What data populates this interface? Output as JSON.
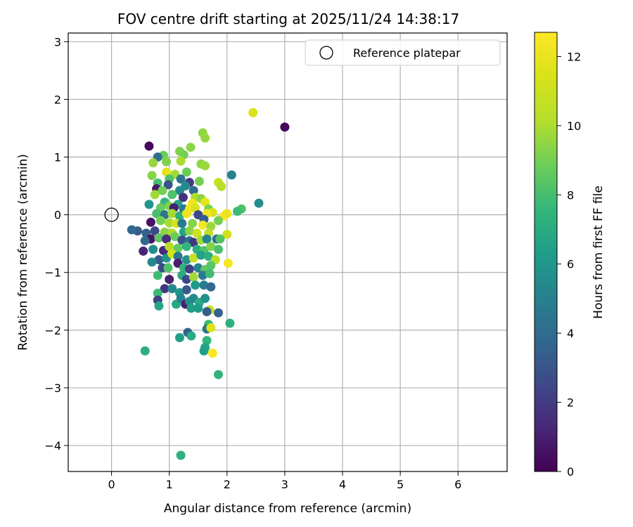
{
  "chart_data": {
    "type": "scatter",
    "title": "FOV centre drift starting at 2025/11/24 14:38:17",
    "xlabel": "Angular distance from reference (arcmin)",
    "ylabel": "Rotation from reference (arcmin)",
    "xlim": [
      -0.75,
      6.85
    ],
    "ylim": [
      -4.45,
      3.15
    ],
    "xticks": [
      0,
      1,
      2,
      3,
      4,
      5,
      6
    ],
    "yticks": [
      -4,
      -3,
      -2,
      -1,
      0,
      1,
      2,
      3
    ],
    "grid": true,
    "legend": {
      "position": "top-right",
      "label": "Reference platepar"
    },
    "reference_point": {
      "x": 0,
      "y": 0
    },
    "colorbar": {
      "label": "Hours from first FF file",
      "min": 0,
      "max": 12.7,
      "ticks": [
        0,
        2,
        4,
        6,
        8,
        10,
        12
      ],
      "colormap": "viridis"
    },
    "points": [
      {
        "x": 3.0,
        "y": 1.52,
        "c": 0.2
      },
      {
        "x": 2.45,
        "y": 1.77,
        "c": 11.5
      },
      {
        "x": 0.65,
        "y": 1.19,
        "c": 0.3
      },
      {
        "x": 1.58,
        "y": 1.42,
        "c": 9.5
      },
      {
        "x": 1.62,
        "y": 1.33,
        "c": 9.6
      },
      {
        "x": 1.37,
        "y": 1.17,
        "c": 9.4
      },
      {
        "x": 1.18,
        "y": 1.1,
        "c": 9.2
      },
      {
        "x": 1.25,
        "y": 1.04,
        "c": 9.0
      },
      {
        "x": 0.9,
        "y": 1.03,
        "c": 8.8
      },
      {
        "x": 0.8,
        "y": 1.0,
        "c": 4.2
      },
      {
        "x": 0.72,
        "y": 0.9,
        "c": 9.6
      },
      {
        "x": 0.95,
        "y": 0.92,
        "c": 9.2
      },
      {
        "x": 1.2,
        "y": 0.93,
        "c": 10.0
      },
      {
        "x": 1.55,
        "y": 0.88,
        "c": 9.5
      },
      {
        "x": 1.62,
        "y": 0.85,
        "c": 9.7
      },
      {
        "x": 2.08,
        "y": 0.69,
        "c": 5.0
      },
      {
        "x": 0.7,
        "y": 0.68,
        "c": 9.3
      },
      {
        "x": 1.3,
        "y": 0.74,
        "c": 8.8
      },
      {
        "x": 0.95,
        "y": 0.74,
        "c": 11.8
      },
      {
        "x": 1.1,
        "y": 0.7,
        "c": 9.8
      },
      {
        "x": 1.2,
        "y": 0.62,
        "c": 4.5
      },
      {
        "x": 1.0,
        "y": 0.62,
        "c": 8.2
      },
      {
        "x": 1.85,
        "y": 0.56,
        "c": 10.8
      },
      {
        "x": 1.9,
        "y": 0.49,
        "c": 10.2
      },
      {
        "x": 1.52,
        "y": 0.58,
        "c": 9.0
      },
      {
        "x": 1.35,
        "y": 0.56,
        "c": 2.0
      },
      {
        "x": 1.28,
        "y": 0.5,
        "c": 5.5
      },
      {
        "x": 0.98,
        "y": 0.52,
        "c": 3.0
      },
      {
        "x": 0.8,
        "y": 0.55,
        "c": 8.0
      },
      {
        "x": 0.78,
        "y": 0.45,
        "c": 0.8
      },
      {
        "x": 0.88,
        "y": 0.42,
        "c": 9.0
      },
      {
        "x": 1.18,
        "y": 0.42,
        "c": 5.4
      },
      {
        "x": 1.42,
        "y": 0.42,
        "c": 4.0
      },
      {
        "x": 0.75,
        "y": 0.35,
        "c": 9.8
      },
      {
        "x": 1.05,
        "y": 0.35,
        "c": 8.2
      },
      {
        "x": 1.24,
        "y": 0.3,
        "c": 1.6
      },
      {
        "x": 1.45,
        "y": 0.3,
        "c": 10.1
      },
      {
        "x": 1.55,
        "y": 0.28,
        "c": 9.4
      },
      {
        "x": 1.62,
        "y": 0.22,
        "c": 11.9
      },
      {
        "x": 1.4,
        "y": 0.2,
        "c": 12.2
      },
      {
        "x": 1.15,
        "y": 0.18,
        "c": 6.5
      },
      {
        "x": 0.92,
        "y": 0.22,
        "c": 7.5
      },
      {
        "x": 0.65,
        "y": 0.18,
        "c": 6.0
      },
      {
        "x": 0.85,
        "y": 0.12,
        "c": 8.7
      },
      {
        "x": 1.0,
        "y": 0.15,
        "c": 9.2
      },
      {
        "x": 1.08,
        "y": 0.12,
        "c": 1.0
      },
      {
        "x": 1.25,
        "y": 0.1,
        "c": 4.5
      },
      {
        "x": 1.35,
        "y": 0.1,
        "c": 12.3
      },
      {
        "x": 1.45,
        "y": 0.12,
        "c": 11.5
      },
      {
        "x": 1.68,
        "y": 0.1,
        "c": 9.1
      },
      {
        "x": 2.55,
        "y": 0.2,
        "c": 5.6
      },
      {
        "x": 2.25,
        "y": 0.1,
        "c": 8.2
      },
      {
        "x": 2.18,
        "y": 0.06,
        "c": 7.8
      },
      {
        "x": 1.75,
        "y": 0.04,
        "c": 11.4
      },
      {
        "x": 1.65,
        "y": 0.02,
        "c": 12.3
      },
      {
        "x": 1.95,
        "y": -0.02,
        "c": 12.6
      },
      {
        "x": 2.0,
        "y": 0.02,
        "c": 12.0
      },
      {
        "x": 0.78,
        "y": 0.02,
        "c": 8.0
      },
      {
        "x": 0.92,
        "y": 0.0,
        "c": 4.5
      },
      {
        "x": 1.05,
        "y": 0.02,
        "c": 9.9
      },
      {
        "x": 1.18,
        "y": -0.02,
        "c": 7.2
      },
      {
        "x": 1.3,
        "y": 0.02,
        "c": 12.1
      },
      {
        "x": 1.5,
        "y": 0.0,
        "c": 2.6
      },
      {
        "x": 1.6,
        "y": -0.08,
        "c": 3.4
      },
      {
        "x": 1.85,
        "y": -0.1,
        "c": 9.0
      },
      {
        "x": 0.68,
        "y": -0.13,
        "c": 0.6
      },
      {
        "x": 0.85,
        "y": -0.1,
        "c": 9.0
      },
      {
        "x": 1.0,
        "y": -0.14,
        "c": 9.9
      },
      {
        "x": 1.12,
        "y": -0.15,
        "c": 11.4
      },
      {
        "x": 1.22,
        "y": -0.15,
        "c": 4.7
      },
      {
        "x": 1.4,
        "y": -0.15,
        "c": 9.3
      },
      {
        "x": 1.58,
        "y": -0.18,
        "c": 12.4
      },
      {
        "x": 1.72,
        "y": -0.2,
        "c": 9.7
      },
      {
        "x": 0.45,
        "y": -0.28,
        "c": 3.3
      },
      {
        "x": 0.35,
        "y": -0.26,
        "c": 3.8
      },
      {
        "x": 0.6,
        "y": -0.32,
        "c": 3.6
      },
      {
        "x": 0.75,
        "y": -0.28,
        "c": 2.5
      },
      {
        "x": 0.92,
        "y": -0.3,
        "c": 9.4
      },
      {
        "x": 1.05,
        "y": -0.32,
        "c": 10.0
      },
      {
        "x": 1.25,
        "y": -0.3,
        "c": 6.7
      },
      {
        "x": 1.35,
        "y": -0.28,
        "c": 9.4
      },
      {
        "x": 1.48,
        "y": -0.32,
        "c": 11.0
      },
      {
        "x": 1.68,
        "y": -0.32,
        "c": 10.6
      },
      {
        "x": 2.0,
        "y": -0.34,
        "c": 11.2
      },
      {
        "x": 0.68,
        "y": -0.42,
        "c": 0.6
      },
      {
        "x": 0.58,
        "y": -0.45,
        "c": 3.8
      },
      {
        "x": 0.82,
        "y": -0.4,
        "c": 8.5
      },
      {
        "x": 0.95,
        "y": -0.42,
        "c": 1.5
      },
      {
        "x": 1.1,
        "y": -0.38,
        "c": 8.8
      },
      {
        "x": 1.22,
        "y": -0.44,
        "c": 2.8
      },
      {
        "x": 1.35,
        "y": -0.45,
        "c": 4.1
      },
      {
        "x": 1.42,
        "y": -0.48,
        "c": 1.8
      },
      {
        "x": 1.55,
        "y": -0.44,
        "c": 9.8
      },
      {
        "x": 1.65,
        "y": -0.42,
        "c": 5.2
      },
      {
        "x": 1.82,
        "y": -0.42,
        "c": 4.4
      },
      {
        "x": 1.88,
        "y": -0.42,
        "c": 8.3
      },
      {
        "x": 0.55,
        "y": -0.63,
        "c": 1.2
      },
      {
        "x": 0.72,
        "y": -0.6,
        "c": 5.6
      },
      {
        "x": 0.9,
        "y": -0.62,
        "c": 1.3
      },
      {
        "x": 1.0,
        "y": -0.55,
        "c": 10.3
      },
      {
        "x": 1.15,
        "y": -0.58,
        "c": 8.6
      },
      {
        "x": 1.3,
        "y": -0.55,
        "c": 7.4
      },
      {
        "x": 1.48,
        "y": -0.6,
        "c": 7.1
      },
      {
        "x": 1.6,
        "y": -0.62,
        "c": 8.2
      },
      {
        "x": 1.72,
        "y": -0.55,
        "c": 9.3
      },
      {
        "x": 1.85,
        "y": -0.6,
        "c": 8.1
      },
      {
        "x": 0.82,
        "y": -0.78,
        "c": 3.3
      },
      {
        "x": 0.95,
        "y": -0.75,
        "c": 6.0
      },
      {
        "x": 1.05,
        "y": -0.68,
        "c": 11.4
      },
      {
        "x": 1.15,
        "y": -0.72,
        "c": 4.5
      },
      {
        "x": 1.3,
        "y": -0.78,
        "c": 5.8
      },
      {
        "x": 1.42,
        "y": -0.75,
        "c": 10.8
      },
      {
        "x": 1.55,
        "y": -0.7,
        "c": 6.5
      },
      {
        "x": 1.68,
        "y": -0.72,
        "c": 7.2
      },
      {
        "x": 1.8,
        "y": -0.78,
        "c": 10.5
      },
      {
        "x": 2.02,
        "y": -0.84,
        "c": 12.4
      },
      {
        "x": 0.7,
        "y": -0.82,
        "c": 5.4
      },
      {
        "x": 0.88,
        "y": -0.92,
        "c": 2.6
      },
      {
        "x": 0.98,
        "y": -0.92,
        "c": 8.2
      },
      {
        "x": 1.15,
        "y": -0.84,
        "c": 0.9
      },
      {
        "x": 1.25,
        "y": -0.92,
        "c": 7.4
      },
      {
        "x": 1.35,
        "y": -0.94,
        "c": 2.2
      },
      {
        "x": 1.5,
        "y": -0.92,
        "c": 5.1
      },
      {
        "x": 1.62,
        "y": -0.95,
        "c": 8.6
      },
      {
        "x": 1.72,
        "y": -0.88,
        "c": 8.4
      },
      {
        "x": 0.8,
        "y": -1.05,
        "c": 7.8
      },
      {
        "x": 1.0,
        "y": -1.12,
        "c": 1.0
      },
      {
        "x": 1.22,
        "y": -1.05,
        "c": 7.0
      },
      {
        "x": 1.3,
        "y": -1.12,
        "c": 2.5
      },
      {
        "x": 1.42,
        "y": -1.08,
        "c": 9.8
      },
      {
        "x": 1.58,
        "y": -1.05,
        "c": 4.7
      },
      {
        "x": 1.7,
        "y": -1.02,
        "c": 7.9
      },
      {
        "x": 0.92,
        "y": -1.28,
        "c": 1.8
      },
      {
        "x": 1.05,
        "y": -1.28,
        "c": 5.4
      },
      {
        "x": 1.18,
        "y": -1.35,
        "c": 6.0
      },
      {
        "x": 1.3,
        "y": -1.3,
        "c": 3.3
      },
      {
        "x": 1.45,
        "y": -1.22,
        "c": 6.2
      },
      {
        "x": 1.6,
        "y": -1.22,
        "c": 4.9
      },
      {
        "x": 1.72,
        "y": -1.25,
        "c": 3.9
      },
      {
        "x": 0.8,
        "y": -1.36,
        "c": 7.8
      },
      {
        "x": 0.8,
        "y": -1.48,
        "c": 2.2
      },
      {
        "x": 1.12,
        "y": -1.55,
        "c": 6.8
      },
      {
        "x": 1.2,
        "y": -1.45,
        "c": 5.0
      },
      {
        "x": 1.28,
        "y": -1.55,
        "c": 1.0
      },
      {
        "x": 1.35,
        "y": -1.5,
        "c": 5.6
      },
      {
        "x": 1.42,
        "y": -1.45,
        "c": 5.4
      },
      {
        "x": 1.52,
        "y": -1.52,
        "c": 7.0
      },
      {
        "x": 1.62,
        "y": -1.45,
        "c": 5.8
      },
      {
        "x": 0.82,
        "y": -1.58,
        "c": 6.7
      },
      {
        "x": 1.38,
        "y": -1.62,
        "c": 6.4
      },
      {
        "x": 1.5,
        "y": -1.62,
        "c": 6.2
      },
      {
        "x": 1.7,
        "y": -1.65,
        "c": 10.8
      },
      {
        "x": 1.65,
        "y": -1.68,
        "c": 3.4
      },
      {
        "x": 1.85,
        "y": -1.7,
        "c": 3.6
      },
      {
        "x": 1.68,
        "y": -1.9,
        "c": 7.8
      },
      {
        "x": 1.65,
        "y": -1.98,
        "c": 4.4
      },
      {
        "x": 1.72,
        "y": -1.96,
        "c": 11.6
      },
      {
        "x": 2.05,
        "y": -1.88,
        "c": 7.2
      },
      {
        "x": 1.32,
        "y": -2.04,
        "c": 3.5
      },
      {
        "x": 1.38,
        "y": -2.1,
        "c": 7.0
      },
      {
        "x": 1.18,
        "y": -2.13,
        "c": 6.5
      },
      {
        "x": 1.65,
        "y": -2.18,
        "c": 7.5
      },
      {
        "x": 1.62,
        "y": -2.3,
        "c": 6.7
      },
      {
        "x": 1.6,
        "y": -2.36,
        "c": 6.4
      },
      {
        "x": 1.75,
        "y": -2.4,
        "c": 12.5
      },
      {
        "x": 0.58,
        "y": -2.36,
        "c": 7.2
      },
      {
        "x": 1.85,
        "y": -2.77,
        "c": 7.4
      },
      {
        "x": 1.2,
        "y": -4.17,
        "c": 7.3
      }
    ]
  }
}
